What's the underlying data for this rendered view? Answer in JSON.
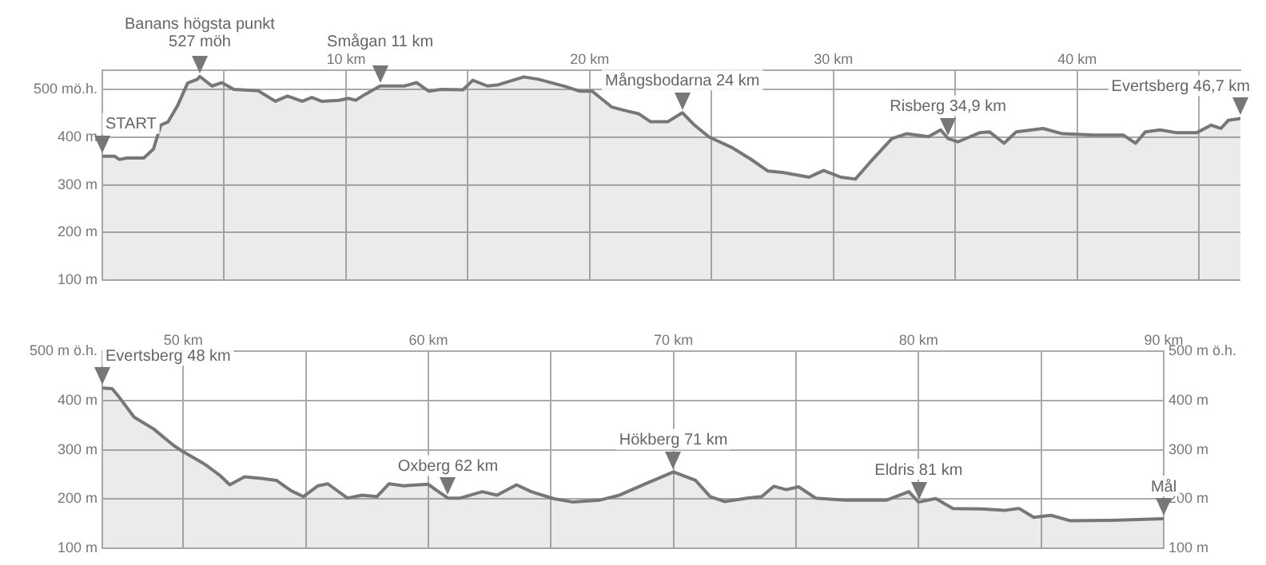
{
  "chart_data": [
    {
      "type": "area",
      "xlim": [
        0,
        46.7
      ],
      "ylim": [
        100,
        540
      ],
      "xticks": [
        {
          "value": 5,
          "label": null
        },
        {
          "value": 10,
          "label": "10 km"
        },
        {
          "value": 15,
          "label": null
        },
        {
          "value": 20,
          "label": "20 km"
        },
        {
          "value": 25,
          "label": null
        },
        {
          "value": 30,
          "label": "30 km"
        },
        {
          "value": 35,
          "label": null
        },
        {
          "value": 40,
          "label": "40 km"
        },
        {
          "value": 45,
          "label": null
        }
      ],
      "yticks": [
        {
          "value": 100,
          "label": "100 m"
        },
        {
          "value": 200,
          "label": "200 m"
        },
        {
          "value": 300,
          "label": "300 m"
        },
        {
          "value": 400,
          "label": "400 m"
        },
        {
          "value": 500,
          "label": "500 mö.h."
        }
      ],
      "grid": true,
      "marker": "none",
      "line_style": "solid",
      "series": [
        {
          "color": "#777777",
          "x": [
            0,
            0.5,
            0.7,
            1.0,
            1.7,
            2.1,
            2.4,
            2.7,
            3.1,
            3.5,
            3.9,
            4.0,
            4.5,
            4.9,
            5.4,
            6.4,
            7.1,
            7.6,
            8.2,
            8.6,
            9.0,
            9.7,
            10.1,
            10.4,
            10.8,
            11.4,
            12.4,
            12.9,
            13.4,
            13.9,
            14.8,
            15.2,
            15.8,
            16.2,
            17.3,
            17.9,
            19.0,
            19.6,
            20.1,
            20.9,
            21.5,
            22.0,
            22.5,
            23.2,
            23.8,
            24.3,
            24.9,
            25.8,
            26.6,
            27.3,
            27.9,
            29.0,
            29.6,
            30.3,
            30.9,
            31.5,
            32.4,
            33.0,
            33.9,
            34.4,
            34.7,
            35.1,
            36.0,
            36.4,
            37.0,
            37.5,
            38.6,
            39.4,
            40.7,
            41.9,
            42.4,
            42.8,
            43.4,
            44.1,
            44.9,
            45.5,
            45.9,
            46.2,
            46.7
          ],
          "values": [
            360,
            360,
            353,
            356,
            356,
            375,
            425,
            432,
            467,
            513,
            521,
            527,
            507,
            514,
            500,
            497,
            475,
            486,
            475,
            483,
            475,
            477,
            481,
            477,
            490,
            507,
            507,
            514,
            496,
            500,
            499,
            519,
            507,
            509,
            526,
            521,
            506,
            496,
            496,
            463,
            455,
            449,
            432,
            432,
            451,
            425,
            400,
            379,
            354,
            329,
            326,
            316,
            330,
            316,
            312,
            347,
            397,
            407,
            401,
            415,
            397,
            390,
            409,
            411,
            387,
            411,
            418,
            407,
            404,
            404,
            387,
            411,
            415,
            409,
            409,
            425,
            418,
            435,
            439
          ]
        }
      ],
      "annotations": [
        {
          "text": "START",
          "x": 0,
          "y": 360
        },
        {
          "text": "Banans högsta punkt 527 möh",
          "x": 4.0,
          "y": 527
        },
        {
          "text": "Smågan 11 km",
          "x": 11.4,
          "y": 507
        },
        {
          "text": "Mångsbodarna 24 km",
          "x": 23.8,
          "y": 451
        },
        {
          "text": "Risberg 34,9 km",
          "x": 34.7,
          "y": 397
        },
        {
          "text": "Evertsberg 46,7 km",
          "x": 46.7,
          "y": 439
        }
      ]
    },
    {
      "type": "area",
      "xlim": [
        46.7,
        90
      ],
      "ylim": [
        100,
        500
      ],
      "y2lim": [
        100,
        500
      ],
      "xticks": [
        {
          "value": 50,
          "label": "50 km"
        },
        {
          "value": 55,
          "label": null
        },
        {
          "value": 60,
          "label": "60 km"
        },
        {
          "value": 65,
          "label": null
        },
        {
          "value": 70,
          "label": "70 km"
        },
        {
          "value": 75,
          "label": null
        },
        {
          "value": 80,
          "label": "80 km"
        },
        {
          "value": 85,
          "label": null
        },
        {
          "value": 90,
          "label": "90 km"
        }
      ],
      "yticks": [
        {
          "value": 100,
          "label": "100 m"
        },
        {
          "value": 200,
          "label": "200 m"
        },
        {
          "value": 300,
          "label": "300 m"
        },
        {
          "value": 400,
          "label": "400 m"
        },
        {
          "value": 500,
          "label": "500 m ö.h."
        }
      ],
      "y2ticks": [
        {
          "value": 100,
          "label": "100 m"
        },
        {
          "value": 200,
          "label": "200 m"
        },
        {
          "value": 300,
          "label": "300 m"
        },
        {
          "value": 400,
          "label": "400 m"
        },
        {
          "value": 500,
          "label": "500 m ö.h."
        }
      ],
      "grid": true,
      "marker": "none",
      "line_style": "solid",
      "series": [
        {
          "color": "#777777",
          "x": [
            46.7,
            47.1,
            47.4,
            48.0,
            48.8,
            49.6,
            50.0,
            50.9,
            51.5,
            51.9,
            52.5,
            53.2,
            53.8,
            54.4,
            54.9,
            55.5,
            55.9,
            56.7,
            57.3,
            57.9,
            58.4,
            59.0,
            60.0,
            60.3,
            60.8,
            61.3,
            62.2,
            62.8,
            63.6,
            64.2,
            65.1,
            65.9,
            67.0,
            67.8,
            69.0,
            70.0,
            70.9,
            71.5,
            72.1,
            73.0,
            73.6,
            74.1,
            74.6,
            75.1,
            75.8,
            77.0,
            78.7,
            79.6,
            80.0,
            80.7,
            81.4,
            82.6,
            83.5,
            84.1,
            84.7,
            85.4,
            86.2,
            87.9,
            90
          ],
          "values": [
            425,
            424,
            406,
            366,
            342,
            309,
            296,
            270,
            248,
            229,
            245,
            242,
            238,
            217,
            205,
            227,
            231,
            202,
            208,
            205,
            231,
            227,
            230,
            219,
            202,
            202,
            215,
            208,
            229,
            215,
            201,
            194,
            198,
            208,
            234,
            255,
            238,
            205,
            195,
            202,
            205,
            226,
            219,
            225,
            202,
            198,
            198,
            215,
            194,
            201,
            181,
            180,
            177,
            181,
            163,
            167,
            156,
            157,
            160
          ]
        }
      ],
      "annotations": [
        {
          "text": "Evertsberg 48 km",
          "x": 46.7,
          "y": 425
        },
        {
          "text": "Oxberg 62 km",
          "x": 60.8,
          "y": 202
        },
        {
          "text": "Hökberg 71 km",
          "x": 70.0,
          "y": 255
        },
        {
          "text": "Eldris 81 km",
          "x": 80.0,
          "y": 194
        },
        {
          "text": "Mål",
          "x": 90,
          "y": 160
        }
      ]
    }
  ]
}
